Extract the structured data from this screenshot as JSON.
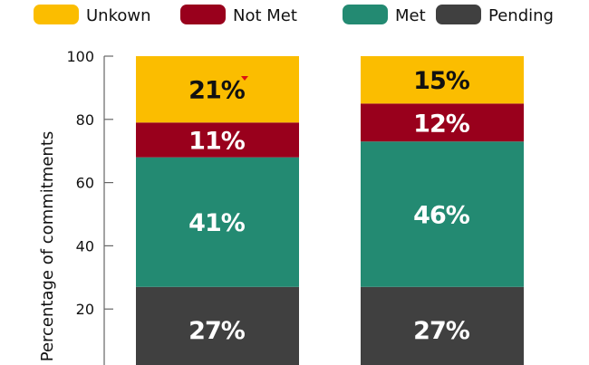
{
  "chart_data": {
    "type": "bar",
    "stacked": true,
    "title": "",
    "xlabel": "",
    "ylabel": "Percentage of commitments",
    "ylim": [
      0,
      100
    ],
    "yticks": [
      20,
      40,
      60,
      80,
      100
    ],
    "grid": false,
    "legend_position": "top",
    "categories": [
      "",
      ""
    ],
    "series": [
      {
        "name": "Pending",
        "color": "#404040",
        "values": [
          27,
          27
        ],
        "labels": [
          "27%",
          "27%"
        ],
        "label_color": "#ffffff"
      },
      {
        "name": "Met",
        "color": "#238a72",
        "values": [
          41,
          46
        ],
        "labels": [
          "41%",
          "46%"
        ],
        "label_color": "#ffffff"
      },
      {
        "name": "Not Met",
        "color": "#99001c",
        "values": [
          11,
          12
        ],
        "labels": [
          "11%",
          "12%"
        ],
        "label_color": "#ffffff"
      },
      {
        "name": "Unkown",
        "color": "#fbbd00",
        "values": [
          21,
          15
        ],
        "labels": [
          "21%",
          "15%"
        ],
        "label_color": "#111111"
      }
    ],
    "legend_order": [
      "Unkown",
      "Not Met",
      "Met",
      "Pending"
    ]
  }
}
